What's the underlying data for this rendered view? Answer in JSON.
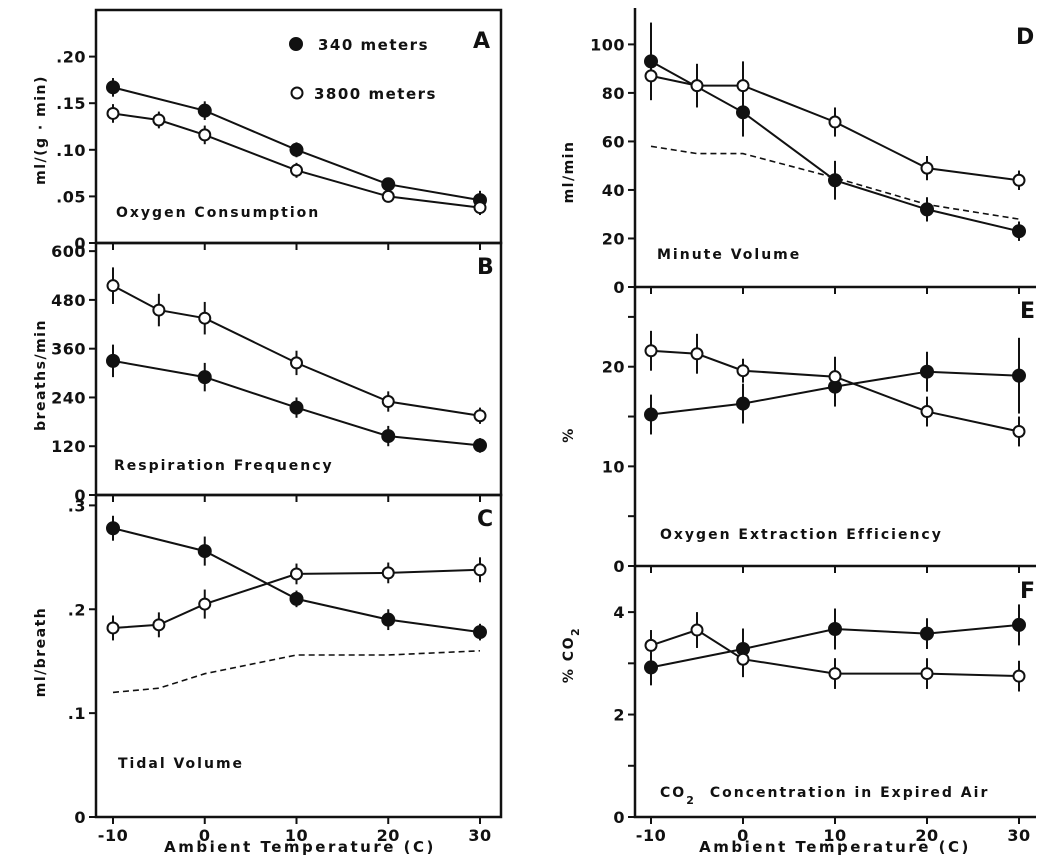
{
  "chart_data": [
    {
      "type": "line",
      "panel": "A",
      "title": "Oxygen Consumption",
      "ylabel": "ml/(g · min)",
      "ylim": [
        0,
        0.25
      ],
      "yticks": [
        0,
        0.05,
        0.1,
        0.15,
        0.2
      ],
      "yticklabels": [
        "0",
        ".05",
        ".10",
        ".15",
        ".20"
      ],
      "x": [
        -10,
        -5,
        0,
        10,
        20,
        30
      ],
      "xticklabels": [],
      "legend": [
        {
          "name": "340 meters",
          "marker": "filled"
        },
        {
          "name": "3800 meters",
          "marker": "open"
        }
      ],
      "series": [
        {
          "name": "340 meters",
          "marker": "filled",
          "x": [
            -10,
            0,
            10,
            20,
            30
          ],
          "values": [
            0.167,
            0.142,
            0.1,
            0.063,
            0.046
          ],
          "err": [
            0.01,
            0.01,
            0.008,
            0.006,
            0.01
          ]
        },
        {
          "name": "3800 meters",
          "marker": "open",
          "x": [
            -10,
            -5,
            0,
            10,
            20,
            30
          ],
          "values": [
            0.139,
            0.132,
            0.116,
            0.078,
            0.05,
            0.038
          ],
          "err": [
            0.01,
            0.009,
            0.01,
            0.008,
            0.006,
            0.008
          ]
        }
      ]
    },
    {
      "type": "line",
      "panel": "B",
      "title": "Respiration Frequency",
      "ylabel": "breaths/min",
      "ylim": [
        0,
        620
      ],
      "yticks": [
        0,
        120,
        240,
        360,
        480,
        600
      ],
      "yticklabels": [
        "0",
        "120",
        "240",
        "360",
        "480",
        "600"
      ],
      "x": [
        -10,
        -5,
        0,
        10,
        20,
        30
      ],
      "xticklabels": [],
      "series": [
        {
          "name": "340 meters",
          "marker": "filled",
          "x": [
            -10,
            0,
            10,
            20,
            30
          ],
          "values": [
            330,
            290,
            215,
            145,
            122
          ],
          "err": [
            40,
            35,
            25,
            25,
            18
          ]
        },
        {
          "name": "3800 meters",
          "marker": "open",
          "x": [
            -10,
            -5,
            0,
            10,
            20,
            30
          ],
          "values": [
            515,
            455,
            435,
            325,
            230,
            195
          ],
          "err": [
            45,
            40,
            40,
            30,
            25,
            20
          ]
        }
      ]
    },
    {
      "type": "line",
      "panel": "C",
      "title": "Tidal Volume",
      "ylabel": "ml/breath",
      "ylim": [
        0,
        0.31
      ],
      "yticks": [
        0,
        0.1,
        0.2,
        0.3
      ],
      "yticklabels": [
        "0",
        ".1",
        ".2",
        ".3"
      ],
      "x": [
        -10,
        -5,
        0,
        10,
        20,
        30
      ],
      "xticklabels": [
        "-10",
        "0",
        "10",
        "20",
        "30"
      ],
      "xticks": [
        -10,
        0,
        10,
        20,
        30
      ],
      "series": [
        {
          "name": "340 meters",
          "marker": "filled",
          "x": [
            -10,
            0,
            10,
            20,
            30
          ],
          "values": [
            0.278,
            0.256,
            0.21,
            0.19,
            0.178
          ],
          "err": [
            0.012,
            0.014,
            0.008,
            0.01,
            0.008
          ]
        },
        {
          "name": "3800 meters",
          "marker": "open",
          "x": [
            -10,
            -5,
            0,
            10,
            20,
            30
          ],
          "values": [
            0.182,
            0.185,
            0.205,
            0.234,
            0.235,
            0.238
          ],
          "err": [
            0.012,
            0.012,
            0.014,
            0.01,
            0.01,
            0.012
          ]
        },
        {
          "name": "",
          "style": "dashed",
          "x": [
            -10,
            -5,
            0,
            10,
            20,
            30
          ],
          "values": [
            0.12,
            0.124,
            0.138,
            0.156,
            0.156,
            0.16
          ],
          "err": []
        }
      ]
    },
    {
      "type": "line",
      "panel": "D",
      "title": "Minute Volume",
      "ylabel": "ml/min",
      "ylim": [
        0,
        115
      ],
      "yticks": [
        0,
        20,
        40,
        60,
        80,
        100
      ],
      "yticklabels": [
        "0",
        "20",
        "40",
        "60",
        "80",
        "100"
      ],
      "x": [
        -10,
        -5,
        0,
        10,
        20,
        30
      ],
      "xticklabels": [],
      "series": [
        {
          "name": "340 meters",
          "marker": "filled",
          "x": [
            -10,
            0,
            10,
            20,
            30
          ],
          "values": [
            93,
            72,
            44,
            32,
            23
          ],
          "err": [
            16,
            10,
            8,
            5,
            4
          ]
        },
        {
          "name": "3800 meters",
          "marker": "open",
          "x": [
            -10,
            -5,
            0,
            10,
            20,
            30
          ],
          "values": [
            87,
            83,
            83,
            68,
            49,
            44
          ],
          "err": [
            8,
            9,
            10,
            6,
            5,
            4
          ]
        },
        {
          "name": "",
          "style": "dashed",
          "x": [
            -10,
            -5,
            0,
            10,
            20,
            30
          ],
          "values": [
            58,
            55,
            55,
            45,
            34,
            28
          ],
          "err": []
        }
      ]
    },
    {
      "type": "line",
      "panel": "E",
      "title": "Oxygen Extraction Efficiency",
      "ylabel": "%",
      "ylim": [
        0,
        28
      ],
      "yticks": [
        0,
        5,
        10,
        15,
        20,
        25
      ],
      "yticklabels": [
        "0",
        "",
        "10",
        "",
        "20",
        ""
      ],
      "x": [
        -10,
        -5,
        0,
        10,
        20,
        30
      ],
      "xticklabels": [],
      "series": [
        {
          "name": "340 meters",
          "marker": "filled",
          "x": [
            -10,
            0,
            10,
            20,
            30
          ],
          "values": [
            15.2,
            16.3,
            18.0,
            19.5,
            19.1
          ],
          "err": [
            2.0,
            2.0,
            2.0,
            2.0,
            3.8
          ]
        },
        {
          "name": "3800 meters",
          "marker": "open",
          "x": [
            -10,
            -5,
            0,
            10,
            20,
            30
          ],
          "values": [
            21.6,
            21.3,
            19.6,
            19.0,
            15.5,
            13.5
          ],
          "err": [
            2.0,
            2.0,
            1.2,
            2.0,
            1.5,
            1.5
          ]
        }
      ]
    },
    {
      "type": "line",
      "panel": "F",
      "title": "Concentration in Expired Air",
      "title_prefix": "CO",
      "title_sub": "2",
      "ylabel": "% CO",
      "ylabel_sub": "2",
      "ylim": [
        0,
        4.9
      ],
      "yticks": [
        0,
        1,
        2,
        3,
        4
      ],
      "yticklabels": [
        "0",
        "",
        "2",
        "",
        "4"
      ],
      "x": [
        -10,
        -5,
        0,
        10,
        20,
        30
      ],
      "xticklabels": [
        "-10",
        "0",
        "10",
        "20",
        "30"
      ],
      "xticks": [
        -10,
        0,
        10,
        20,
        30
      ],
      "xlabel": "Ambient Temperature (C)",
      "series": [
        {
          "name": "340 meters",
          "marker": "filled",
          "x": [
            -10,
            0,
            10,
            20,
            30
          ],
          "values": [
            2.92,
            3.28,
            3.67,
            3.58,
            3.75
          ],
          "err": [
            0.35,
            0.4,
            0.4,
            0.3,
            0.4
          ]
        },
        {
          "name": "3800 meters",
          "marker": "open",
          "x": [
            -10,
            -5,
            0,
            10,
            20,
            30
          ],
          "values": [
            3.35,
            3.65,
            3.08,
            2.8,
            2.8,
            2.75
          ],
          "err": [
            0.3,
            0.35,
            0.35,
            0.3,
            0.3,
            0.3
          ]
        }
      ]
    }
  ],
  "left_xlabel": "Ambient Temperature (C)"
}
